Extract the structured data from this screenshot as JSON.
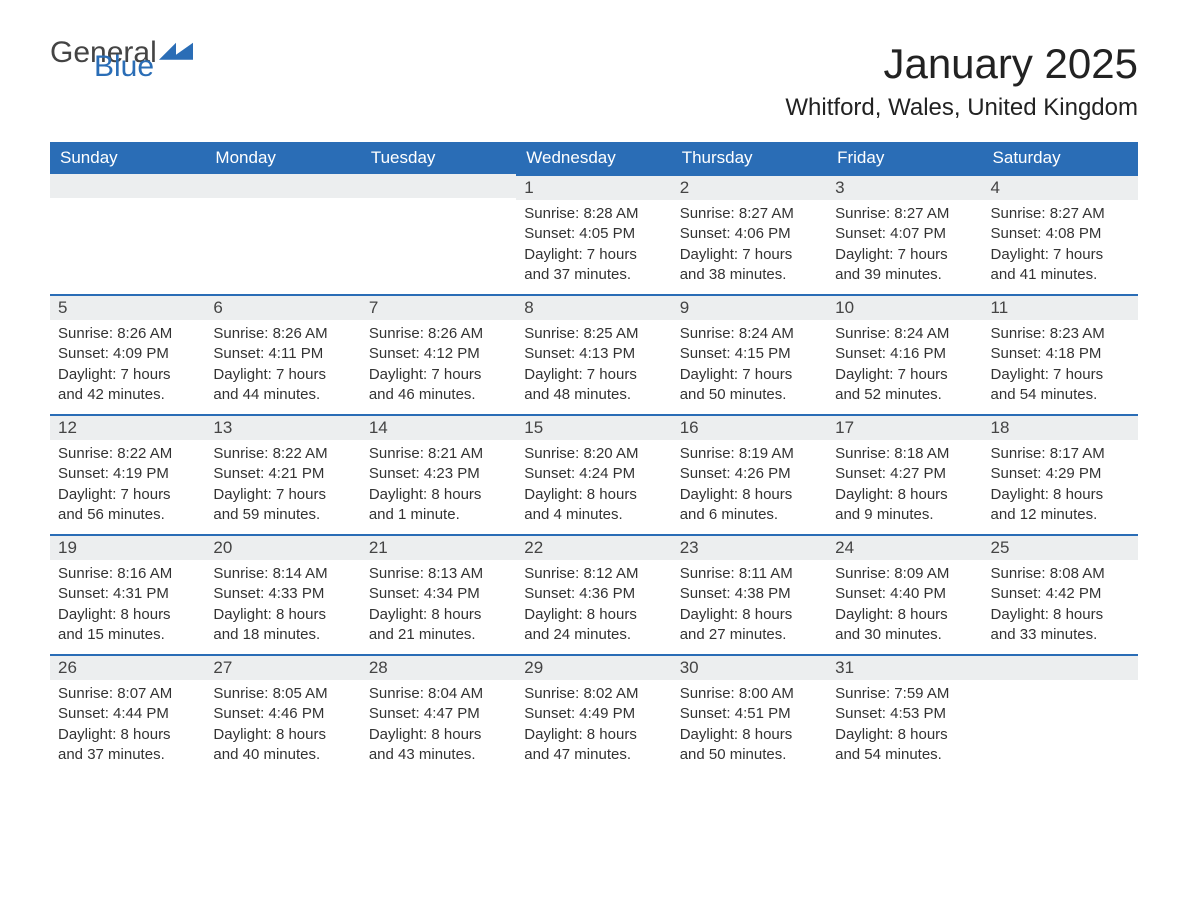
{
  "logo": {
    "text1": "General",
    "text2": "Blue",
    "icon_color": "#2a6db6"
  },
  "title": "January 2025",
  "location": "Whitford, Wales, United Kingdom",
  "weekdays": [
    "Sunday",
    "Monday",
    "Tuesday",
    "Wednesday",
    "Thursday",
    "Friday",
    "Saturday"
  ],
  "header_bg": "#2a6db6",
  "header_fg": "#ffffff",
  "daynum_bg": "#eceeef",
  "row_border": "#2a6db6",
  "text_color": "#333333",
  "weeks": [
    [
      null,
      null,
      null,
      {
        "n": "1",
        "sr": "Sunrise: 8:28 AM",
        "ss": "Sunset: 4:05 PM",
        "d1": "Daylight: 7 hours",
        "d2": "and 37 minutes."
      },
      {
        "n": "2",
        "sr": "Sunrise: 8:27 AM",
        "ss": "Sunset: 4:06 PM",
        "d1": "Daylight: 7 hours",
        "d2": "and 38 minutes."
      },
      {
        "n": "3",
        "sr": "Sunrise: 8:27 AM",
        "ss": "Sunset: 4:07 PM",
        "d1": "Daylight: 7 hours",
        "d2": "and 39 minutes."
      },
      {
        "n": "4",
        "sr": "Sunrise: 8:27 AM",
        "ss": "Sunset: 4:08 PM",
        "d1": "Daylight: 7 hours",
        "d2": "and 41 minutes."
      }
    ],
    [
      {
        "n": "5",
        "sr": "Sunrise: 8:26 AM",
        "ss": "Sunset: 4:09 PM",
        "d1": "Daylight: 7 hours",
        "d2": "and 42 minutes."
      },
      {
        "n": "6",
        "sr": "Sunrise: 8:26 AM",
        "ss": "Sunset: 4:11 PM",
        "d1": "Daylight: 7 hours",
        "d2": "and 44 minutes."
      },
      {
        "n": "7",
        "sr": "Sunrise: 8:26 AM",
        "ss": "Sunset: 4:12 PM",
        "d1": "Daylight: 7 hours",
        "d2": "and 46 minutes."
      },
      {
        "n": "8",
        "sr": "Sunrise: 8:25 AM",
        "ss": "Sunset: 4:13 PM",
        "d1": "Daylight: 7 hours",
        "d2": "and 48 minutes."
      },
      {
        "n": "9",
        "sr": "Sunrise: 8:24 AM",
        "ss": "Sunset: 4:15 PM",
        "d1": "Daylight: 7 hours",
        "d2": "and 50 minutes."
      },
      {
        "n": "10",
        "sr": "Sunrise: 8:24 AM",
        "ss": "Sunset: 4:16 PM",
        "d1": "Daylight: 7 hours",
        "d2": "and 52 minutes."
      },
      {
        "n": "11",
        "sr": "Sunrise: 8:23 AM",
        "ss": "Sunset: 4:18 PM",
        "d1": "Daylight: 7 hours",
        "d2": "and 54 minutes."
      }
    ],
    [
      {
        "n": "12",
        "sr": "Sunrise: 8:22 AM",
        "ss": "Sunset: 4:19 PM",
        "d1": "Daylight: 7 hours",
        "d2": "and 56 minutes."
      },
      {
        "n": "13",
        "sr": "Sunrise: 8:22 AM",
        "ss": "Sunset: 4:21 PM",
        "d1": "Daylight: 7 hours",
        "d2": "and 59 minutes."
      },
      {
        "n": "14",
        "sr": "Sunrise: 8:21 AM",
        "ss": "Sunset: 4:23 PM",
        "d1": "Daylight: 8 hours",
        "d2": "and 1 minute."
      },
      {
        "n": "15",
        "sr": "Sunrise: 8:20 AM",
        "ss": "Sunset: 4:24 PM",
        "d1": "Daylight: 8 hours",
        "d2": "and 4 minutes."
      },
      {
        "n": "16",
        "sr": "Sunrise: 8:19 AM",
        "ss": "Sunset: 4:26 PM",
        "d1": "Daylight: 8 hours",
        "d2": "and 6 minutes."
      },
      {
        "n": "17",
        "sr": "Sunrise: 8:18 AM",
        "ss": "Sunset: 4:27 PM",
        "d1": "Daylight: 8 hours",
        "d2": "and 9 minutes."
      },
      {
        "n": "18",
        "sr": "Sunrise: 8:17 AM",
        "ss": "Sunset: 4:29 PM",
        "d1": "Daylight: 8 hours",
        "d2": "and 12 minutes."
      }
    ],
    [
      {
        "n": "19",
        "sr": "Sunrise: 8:16 AM",
        "ss": "Sunset: 4:31 PM",
        "d1": "Daylight: 8 hours",
        "d2": "and 15 minutes."
      },
      {
        "n": "20",
        "sr": "Sunrise: 8:14 AM",
        "ss": "Sunset: 4:33 PM",
        "d1": "Daylight: 8 hours",
        "d2": "and 18 minutes."
      },
      {
        "n": "21",
        "sr": "Sunrise: 8:13 AM",
        "ss": "Sunset: 4:34 PM",
        "d1": "Daylight: 8 hours",
        "d2": "and 21 minutes."
      },
      {
        "n": "22",
        "sr": "Sunrise: 8:12 AM",
        "ss": "Sunset: 4:36 PM",
        "d1": "Daylight: 8 hours",
        "d2": "and 24 minutes."
      },
      {
        "n": "23",
        "sr": "Sunrise: 8:11 AM",
        "ss": "Sunset: 4:38 PM",
        "d1": "Daylight: 8 hours",
        "d2": "and 27 minutes."
      },
      {
        "n": "24",
        "sr": "Sunrise: 8:09 AM",
        "ss": "Sunset: 4:40 PM",
        "d1": "Daylight: 8 hours",
        "d2": "and 30 minutes."
      },
      {
        "n": "25",
        "sr": "Sunrise: 8:08 AM",
        "ss": "Sunset: 4:42 PM",
        "d1": "Daylight: 8 hours",
        "d2": "and 33 minutes."
      }
    ],
    [
      {
        "n": "26",
        "sr": "Sunrise: 8:07 AM",
        "ss": "Sunset: 4:44 PM",
        "d1": "Daylight: 8 hours",
        "d2": "and 37 minutes."
      },
      {
        "n": "27",
        "sr": "Sunrise: 8:05 AM",
        "ss": "Sunset: 4:46 PM",
        "d1": "Daylight: 8 hours",
        "d2": "and 40 minutes."
      },
      {
        "n": "28",
        "sr": "Sunrise: 8:04 AM",
        "ss": "Sunset: 4:47 PM",
        "d1": "Daylight: 8 hours",
        "d2": "and 43 minutes."
      },
      {
        "n": "29",
        "sr": "Sunrise: 8:02 AM",
        "ss": "Sunset: 4:49 PM",
        "d1": "Daylight: 8 hours",
        "d2": "and 47 minutes."
      },
      {
        "n": "30",
        "sr": "Sunrise: 8:00 AM",
        "ss": "Sunset: 4:51 PM",
        "d1": "Daylight: 8 hours",
        "d2": "and 50 minutes."
      },
      {
        "n": "31",
        "sr": "Sunrise: 7:59 AM",
        "ss": "Sunset: 4:53 PM",
        "d1": "Daylight: 8 hours",
        "d2": "and 54 minutes."
      },
      null
    ]
  ]
}
